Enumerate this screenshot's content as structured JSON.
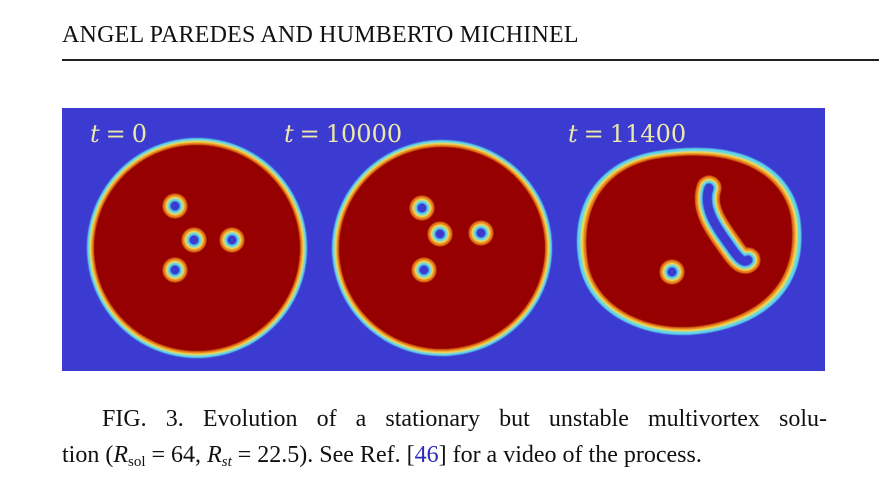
{
  "header": {
    "running_head": "ANGEL PAREDES AND HUMBERTO MICHINEL"
  },
  "figure": {
    "colors": {
      "background_blue": "#3b3bd2",
      "soliton_red": "#960000",
      "ring_cyan": "#5fd6e8",
      "ring_yellow": "#e8d84a",
      "ring_orange": "#f07a1a"
    },
    "panels": [
      {
        "time_symbol": "t",
        "equals": "=",
        "time_value": "0"
      },
      {
        "time_symbol": "t",
        "equals": "=",
        "time_value": "10000"
      },
      {
        "time_symbol": "t",
        "equals": "=",
        "time_value": "11400"
      }
    ]
  },
  "caption": {
    "label": "FIG. 3.",
    "text_1": "Evolution of a stationary but unstable multivortex solu-",
    "text_2": "tion (",
    "r_sol_symbol": "R",
    "r_sol_sub": "sol",
    "r_sol_value": " = 64, ",
    "r_st_symbol": "R",
    "r_st_sub": "st",
    "r_st_value": " = 22.5). See Ref. [",
    "ref_number": "46",
    "text_3": "] for a video of the process."
  }
}
